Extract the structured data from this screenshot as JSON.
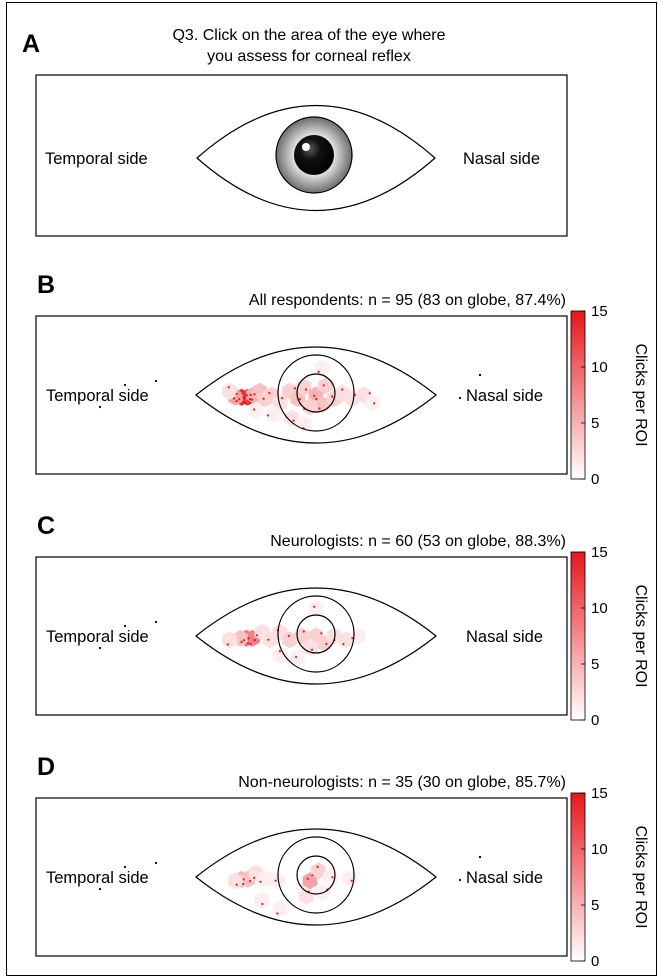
{
  "panel_a": {
    "label": "A",
    "title_line1": "Q3. Click on the area of the eye where",
    "title_line2": "you assess for corneal reflex",
    "temporal_label": "Temporal side",
    "nasal_label": "Nasal side"
  },
  "colorbar": {
    "label": "Clicks per ROI",
    "ticks": [
      "0",
      "5",
      "10",
      "15"
    ],
    "min": 0,
    "max": 15,
    "low_color": "#ffffff",
    "high_color": "#e8161b"
  },
  "chart_data": [
    {
      "type": "heatmap",
      "panel": "B",
      "title": "All respondents: n = 95 (83 on globe, 87.4%)",
      "temporal_label": "Temporal side",
      "nasal_label": "Nasal side",
      "colorbar_label": "Clicks per ROI",
      "vmin": 0,
      "vmax": 15,
      "respondents": 95,
      "on_globe": 83,
      "percent_on_globe": 87.4,
      "rois": [
        {
          "x": -0.62,
          "y": 0.03,
          "v": 14
        },
        {
          "x": -0.57,
          "y": 0.03,
          "v": 13
        },
        {
          "x": -0.67,
          "y": 0.03,
          "v": 6
        },
        {
          "x": -0.52,
          "y": 0.0,
          "v": 5
        },
        {
          "x": -0.47,
          "y": -0.05,
          "v": 4
        },
        {
          "x": -0.42,
          "y": 0.05,
          "v": 3
        },
        {
          "x": -0.37,
          "y": 0.0,
          "v": 3
        },
        {
          "x": -0.72,
          "y": -0.05,
          "v": 2
        },
        {
          "x": -0.3,
          "y": 0.1,
          "v": 2
        },
        {
          "x": -0.22,
          "y": -0.05,
          "v": 3
        },
        {
          "x": -0.15,
          "y": 0.05,
          "v": 4
        },
        {
          "x": -0.1,
          "y": -0.1,
          "v": 3
        },
        {
          "x": 0.0,
          "y": 0.0,
          "v": 5
        },
        {
          "x": 0.05,
          "y": 0.12,
          "v": 4
        },
        {
          "x": -0.05,
          "y": 0.15,
          "v": 3
        },
        {
          "x": 0.08,
          "y": -0.12,
          "v": 3
        },
        {
          "x": 0.15,
          "y": 0.05,
          "v": 3
        },
        {
          "x": 0.22,
          "y": -0.02,
          "v": 2
        },
        {
          "x": 0.3,
          "y": 0.05,
          "v": 2
        },
        {
          "x": 0.4,
          "y": 0.0,
          "v": 2
        },
        {
          "x": 0.47,
          "y": 0.1,
          "v": 1
        },
        {
          "x": -0.2,
          "y": 0.3,
          "v": 2
        },
        {
          "x": -0.1,
          "y": 0.38,
          "v": 1
        },
        {
          "x": 0.05,
          "y": -0.35,
          "v": 1
        },
        {
          "x": -0.35,
          "y": 0.25,
          "v": 1
        },
        {
          "x": -0.5,
          "y": 0.2,
          "v": 1
        }
      ]
    },
    {
      "type": "heatmap",
      "panel": "C",
      "title": "Neurologists: n = 60 (53 on globe, 88.3%)",
      "temporal_label": "Temporal side",
      "nasal_label": "Nasal side",
      "colorbar_label": "Clicks per ROI",
      "vmin": 0,
      "vmax": 15,
      "respondents": 60,
      "on_globe": 53,
      "percent_on_globe": 88.3,
      "rois": [
        {
          "x": -0.58,
          "y": 0.03,
          "v": 9
        },
        {
          "x": -0.53,
          "y": 0.03,
          "v": 8
        },
        {
          "x": -0.63,
          "y": 0.03,
          "v": 4
        },
        {
          "x": -0.72,
          "y": 0.05,
          "v": 2
        },
        {
          "x": -0.45,
          "y": -0.05,
          "v": 2
        },
        {
          "x": -0.38,
          "y": 0.05,
          "v": 2
        },
        {
          "x": -0.3,
          "y": -0.05,
          "v": 2
        },
        {
          "x": -0.22,
          "y": 0.05,
          "v": 3
        },
        {
          "x": -0.12,
          "y": 0.0,
          "v": 3
        },
        {
          "x": 0.0,
          "y": 0.0,
          "v": 3
        },
        {
          "x": 0.07,
          "y": 0.1,
          "v": 3
        },
        {
          "x": -0.05,
          "y": 0.15,
          "v": 2
        },
        {
          "x": 0.15,
          "y": 0.0,
          "v": 2
        },
        {
          "x": 0.25,
          "y": 0.05,
          "v": 2
        },
        {
          "x": 0.35,
          "y": 0.0,
          "v": 1
        },
        {
          "x": -0.15,
          "y": 0.28,
          "v": 1
        },
        {
          "x": 0.0,
          "y": -0.35,
          "v": 1
        },
        {
          "x": -0.3,
          "y": 0.25,
          "v": 1
        }
      ]
    },
    {
      "type": "heatmap",
      "panel": "D",
      "title": "Non-neurologists: n = 35 (30 on globe, 85.7%)",
      "temporal_label": "Temporal side",
      "nasal_label": "Nasal side",
      "colorbar_label": "Clicks per ROI",
      "vmin": 0,
      "vmax": 15,
      "respondents": 35,
      "on_globe": 30,
      "percent_on_globe": 85.7,
      "rois": [
        {
          "x": -0.62,
          "y": 0.03,
          "v": 5
        },
        {
          "x": -0.57,
          "y": 0.03,
          "v": 4
        },
        {
          "x": -0.67,
          "y": 0.05,
          "v": 2
        },
        {
          "x": -0.5,
          "y": -0.05,
          "v": 2
        },
        {
          "x": -0.42,
          "y": 0.02,
          "v": 1
        },
        {
          "x": -0.32,
          "y": 0.05,
          "v": 1
        },
        {
          "x": -0.05,
          "y": 0.05,
          "v": 6
        },
        {
          "x": 0.02,
          "y": -0.08,
          "v": 3
        },
        {
          "x": -0.08,
          "y": 0.25,
          "v": 2
        },
        {
          "x": 0.05,
          "y": 0.2,
          "v": 1
        },
        {
          "x": 0.12,
          "y": 0.0,
          "v": 1
        },
        {
          "x": 0.28,
          "y": 0.02,
          "v": 1
        },
        {
          "x": -0.45,
          "y": 0.3,
          "v": 1
        },
        {
          "x": -0.3,
          "y": 0.42,
          "v": 1
        }
      ]
    }
  ]
}
